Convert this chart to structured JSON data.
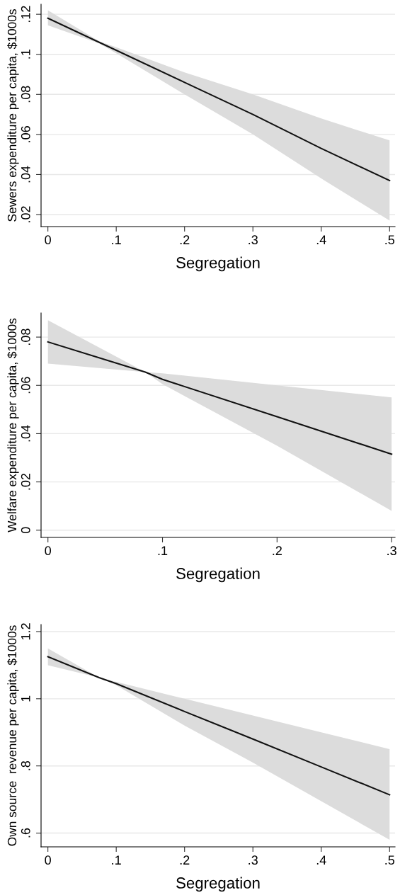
{
  "chart_data": [
    {
      "type": "line",
      "xlabel": "Segregation",
      "ylabel": "Sewers expenditure per capita, $1000s",
      "grid": "y",
      "x": [
        0,
        0.075,
        0.1,
        0.2,
        0.3,
        0.4,
        0.5
      ],
      "series": [
        {
          "color": "#111111",
          "values": [
            0.118,
            0.106,
            0.102,
            0.086,
            0.07,
            0.053,
            0.037
          ],
          "lower": [
            0.1145,
            0.1055,
            0.1005,
            0.08,
            0.06,
            0.038,
            0.017
          ],
          "upper": [
            0.122,
            0.1065,
            0.1035,
            0.091,
            0.08,
            0.068,
            0.057
          ]
        }
      ],
      "xlim": [
        -0.01,
        0.508
      ],
      "ylim": [
        0.014,
        0.125
      ],
      "xticks": [
        0,
        {
          "value": 0.1,
          "label": ".1"
        },
        {
          "value": 0.2,
          "label": ".2"
        },
        {
          "value": 0.3,
          "label": ".3"
        },
        {
          "value": 0.4,
          "label": ".4"
        },
        {
          "value": 0.5,
          "label": ".5"
        }
      ],
      "yticks": [
        {
          "value": 0.02,
          "label": ".02"
        },
        {
          "value": 0.04,
          "label": ".04"
        },
        {
          "value": 0.06,
          "label": ".06"
        },
        {
          "value": 0.08,
          "label": ".08"
        },
        {
          "value": 0.1,
          "label": ".1"
        },
        {
          "value": 0.12,
          "label": ".12"
        }
      ]
    },
    {
      "type": "line",
      "xlabel": "Segregation",
      "ylabel": "Welfare expenditure per capita, $1000s",
      "grid": "y",
      "x": [
        0,
        0.085,
        0.1,
        0.2,
        0.3
      ],
      "series": [
        {
          "color": "#111111",
          "values": [
            0.078,
            0.0655,
            0.0625,
            0.047,
            0.0315
          ],
          "lower": [
            0.069,
            0.0655,
            0.0605,
            0.035,
            0.008
          ],
          "upper": [
            0.087,
            0.0655,
            0.065,
            0.06,
            0.055
          ]
        }
      ],
      "xlim": [
        -0.006,
        0.303
      ],
      "ylim": [
        -0.003,
        0.09
      ],
      "xticks": [
        0,
        {
          "value": 0.1,
          "label": ".1"
        },
        {
          "value": 0.2,
          "label": ".2"
        },
        {
          "value": 0.3,
          "label": ".3"
        }
      ],
      "yticks": [
        0,
        {
          "value": 0.02,
          "label": ".02"
        },
        {
          "value": 0.04,
          "label": ".04"
        },
        {
          "value": 0.06,
          "label": ".06"
        },
        {
          "value": 0.08,
          "label": ".08"
        }
      ]
    },
    {
      "type": "line",
      "xlabel": "Segregation",
      "ylabel": "Own source  revenue per capita, $1000s",
      "grid": "y",
      "x": [
        0,
        0.075,
        0.1,
        0.2,
        0.3,
        0.4,
        0.5
      ],
      "series": [
        {
          "color": "#111111",
          "values": [
            1.125,
            1.063,
            1.045,
            0.962,
            0.88,
            0.797,
            0.714
          ],
          "lower": [
            1.1,
            1.063,
            1.04,
            0.92,
            0.81,
            0.695,
            0.58
          ],
          "upper": [
            1.15,
            1.063,
            1.05,
            1.0,
            0.95,
            0.9,
            0.85
          ]
        }
      ],
      "xlim": [
        -0.01,
        0.508
      ],
      "ylim": [
        0.559,
        1.221
      ],
      "xticks": [
        0,
        {
          "value": 0.1,
          "label": ".1"
        },
        {
          "value": 0.2,
          "label": ".2"
        },
        {
          "value": 0.3,
          "label": ".3"
        },
        {
          "value": 0.4,
          "label": ".4"
        },
        {
          "value": 0.5,
          "label": ".5"
        }
      ],
      "yticks": [
        {
          "value": 0.6,
          "label": ".6"
        },
        {
          "value": 0.8,
          "label": ".8"
        },
        1,
        1.2
      ]
    }
  ]
}
